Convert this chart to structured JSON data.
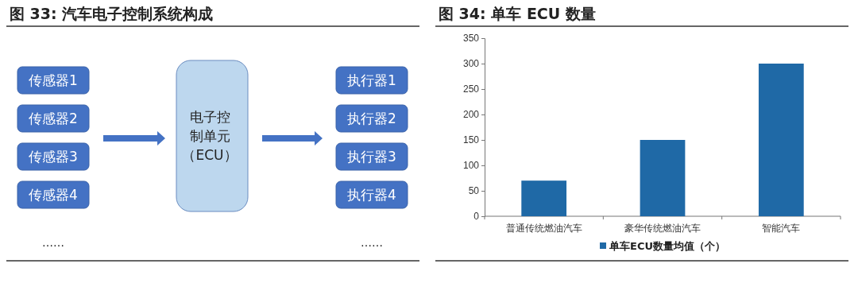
{
  "chart_data": [
    {
      "type": "other",
      "title": "图 33:  汽车电子控制系统构成",
      "annotations": [
        "传感器1",
        "传感器2",
        "传感器3",
        "传感器4",
        "……",
        "电子控制单元（ECU）",
        "执行器1",
        "执行器2",
        "执行器3",
        "执行器4",
        "……"
      ]
    },
    {
      "type": "bar",
      "title": "图 34:  单车 ECU 数量",
      "categories": [
        "普通传统燃油汽车",
        "豪华传统燃油汽车",
        "智能汽车"
      ],
      "series": [
        {
          "name": "单车ECU数量均值（个）",
          "color": "#1f69a6",
          "values": [
            70,
            150,
            300
          ]
        }
      ],
      "ylim": [
        0,
        350
      ],
      "yticks": [
        0,
        50,
        100,
        150,
        200,
        250,
        300,
        350
      ],
      "legend": "bottom",
      "grid": false
    }
  ]
}
